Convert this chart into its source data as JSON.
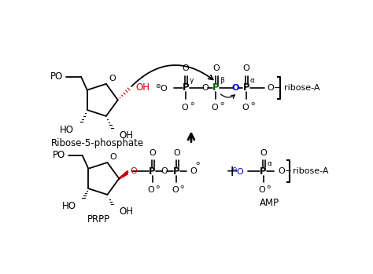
{
  "bg_color": "#ffffff",
  "fig_width": 4.74,
  "fig_height": 3.49,
  "dpi": 100,
  "black": "#000000",
  "red": "#cc0000",
  "blue": "#0000cc",
  "green": "#006400",
  "label_ribose5p": "Ribose-5-phosphate",
  "label_prpp": "PRPP",
  "label_amp": "AMP"
}
